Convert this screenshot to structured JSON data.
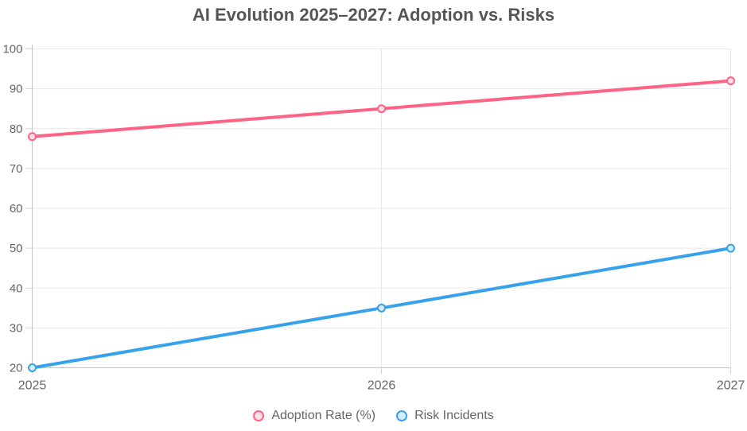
{
  "chart_data": {
    "type": "line",
    "title": "AI Evolution 2025–2027: Adoption vs. Risks",
    "categories": [
      "2025",
      "2026",
      "2027"
    ],
    "series": [
      {
        "name": "Adoption Rate (%)",
        "slug": "adoption-rate",
        "values": [
          78,
          85,
          92
        ],
        "color": "#ff6384",
        "point_fill": "#ffe0e6"
      },
      {
        "name": "Risk Incidents",
        "slug": "risk-incidents",
        "values": [
          20,
          35,
          50
        ],
        "color": "#36a2eb",
        "point_fill": "#d7ecfb"
      }
    ],
    "xlabel": "",
    "ylabel": "",
    "ylim": [
      20,
      100
    ],
    "ytick_step": 10,
    "yticks": [
      20,
      30,
      40,
      50,
      60,
      70,
      80,
      90,
      100
    ],
    "grid": true,
    "legend_position": "bottom"
  }
}
